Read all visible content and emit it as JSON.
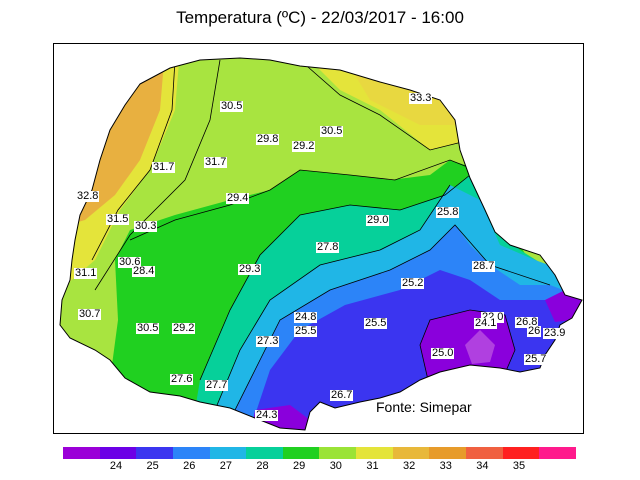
{
  "title": "Temperatura (ºC)  -  22/03/2017  -  16:00",
  "source": "Fonte: Simepar",
  "colorbar": {
    "colors": [
      "#9b00d8",
      "#6c00e6",
      "#3b35f0",
      "#2c84f8",
      "#20b6e6",
      "#06d09a",
      "#20d020",
      "#9ae336",
      "#e4e43a",
      "#e8b83a",
      "#e79b2a",
      "#f06040",
      "#ff2020",
      "#ff1a8c"
    ],
    "ticks": [
      "24",
      "25",
      "26",
      "27",
      "28",
      "29",
      "30",
      "31",
      "32",
      "33",
      "34",
      "35"
    ]
  },
  "map_labels": [
    "33.3",
    "30.5",
    "30.5",
    "29.8",
    "29.2",
    "31.7",
    "31.7",
    "32.8",
    "29.4",
    "31.5",
    "30.3",
    "29.0",
    "25.8",
    "27.8",
    "30.6",
    "28.4",
    "29.3",
    "31.1",
    "28.7",
    "25.2",
    "30.7",
    "24.8",
    "22.0",
    "25.5",
    "25.5",
    "24.1",
    "26.8",
    "26",
    "23.9",
    "30.5",
    "29.2",
    "27.3",
    "25.0",
    "25.7",
    "27.6",
    "27.7",
    "26.7",
    "24.3"
  ],
  "chart_data": {
    "type": "heatmap",
    "title": "Temperatura (ºC)  -  22/03/2017  -  16:00",
    "legend_placement": "bottom",
    "colorbar_ticks": [
      24,
      25,
      26,
      27,
      28,
      29,
      30,
      31,
      32,
      33,
      34,
      35
    ],
    "point_values": [
      33.3,
      30.5,
      30.5,
      29.8,
      29.2,
      31.7,
      31.7,
      32.8,
      29.4,
      31.5,
      30.3,
      29.0,
      25.8,
      27.8,
      30.6,
      28.4,
      29.3,
      31.1,
      28.7,
      25.2,
      30.7,
      24.8,
      22.0,
      25.5,
      25.5,
      24.1,
      26.8,
      26,
      23.9,
      30.5,
      29.2,
      27.3,
      25.0,
      25.7,
      27.6,
      27.7,
      26.7,
      24.3
    ]
  }
}
